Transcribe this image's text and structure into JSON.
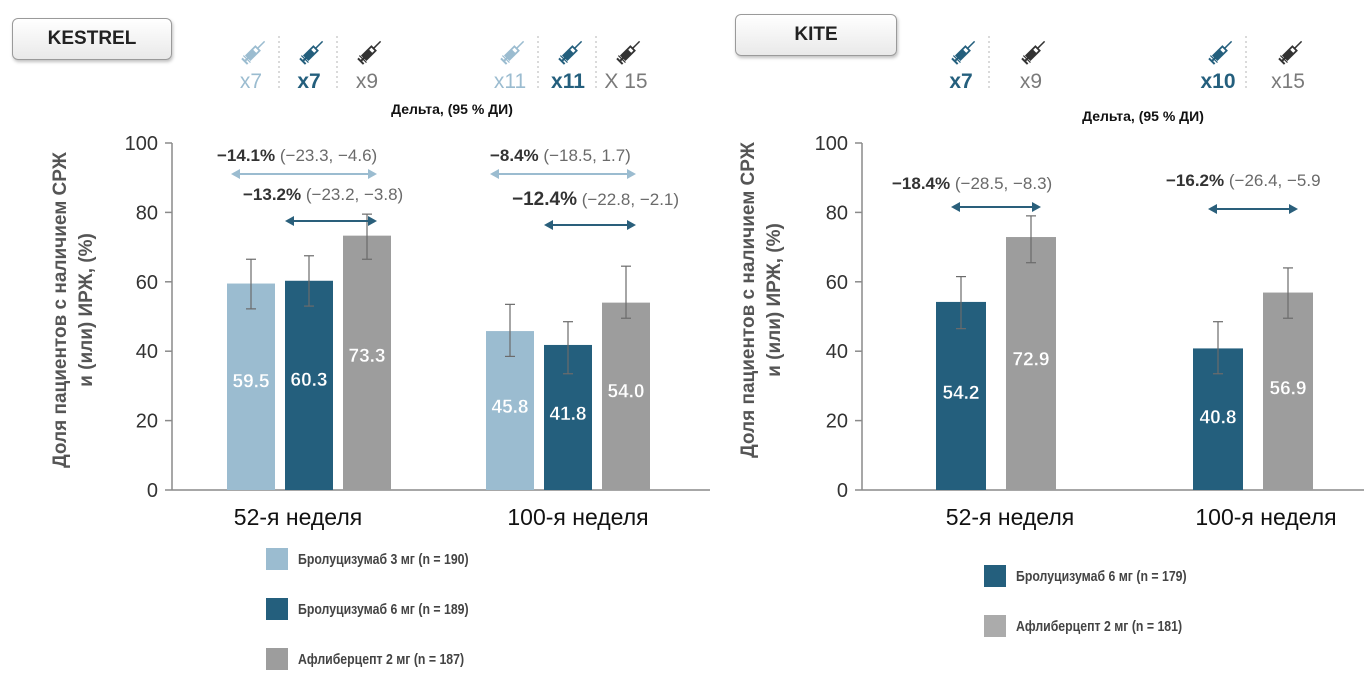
{
  "colors": {
    "brolucizumab_3mg": "#9bbcd0",
    "brolucizumab_6mg": "#245f7d",
    "aflibercept_2mg": "#9d9d9d",
    "delta_arrow": "#2a5f7b",
    "delta_arrow_light": "#9bbcd0"
  },
  "chart_data": [
    {
      "type": "bar",
      "study": "KESTREL",
      "ylabel": "Доля пациентов с наличием СРЖ и (или) ИРЖ, (%)",
      "ylim": [
        0,
        100
      ],
      "yticks": [
        0,
        20,
        40,
        60,
        80,
        100
      ],
      "categories": [
        "52-я неделя",
        "100-я неделя"
      ],
      "delta_title": "Дельта, (95 % ДИ)",
      "series": [
        {
          "name": "Бролуцизумаб 3 мг (n = 190)",
          "color": "#9bbcd0",
          "values": [
            59.5,
            45.8
          ],
          "value_labels": [
            "59.5",
            "45.8"
          ],
          "ci_low": [
            52.2,
            38.5
          ],
          "ci_high": [
            66.5,
            53.5
          ]
        },
        {
          "name": "Бролуцизумаб 6 мг (n = 189)",
          "color": "#245f7d",
          "values": [
            60.3,
            41.8
          ],
          "value_labels": [
            "60.3",
            "41.8"
          ],
          "ci_low": [
            53.0,
            33.5
          ],
          "ci_high": [
            67.5,
            48.5
          ]
        },
        {
          "name": "Афлиберцепт 2 мг (n = 187)",
          "color": "#9d9d9d",
          "values": [
            73.3,
            54.0
          ],
          "value_labels": [
            "73.3",
            "54.0"
          ],
          "ci_low": [
            66.5,
            49.5
          ],
          "ci_high": [
            79.5,
            64.5
          ]
        }
      ],
      "injections": [
        [
          "x7",
          "x7",
          "x9"
        ],
        [
          "x11",
          "x11",
          "X 15"
        ]
      ],
      "deltas": [
        {
          "category": 0,
          "from": 0,
          "to": 2,
          "value": "−14.1%",
          "ci": "(−23.3, −4.6)",
          "tone": "light"
        },
        {
          "category": 0,
          "from": 1,
          "to": 2,
          "value": "−13.2%",
          "ci": "(−23.2, −3.8)",
          "tone": "dark"
        },
        {
          "category": 1,
          "from": 0,
          "to": 2,
          "value": "−8.4%",
          "ci": "(−18.5, 1.7)",
          "tone": "light"
        },
        {
          "category": 1,
          "from": 1,
          "to": 2,
          "value": "−12.4%",
          "ci": "(−22.8, −2.1)",
          "tone": "dark"
        }
      ],
      "legend": [
        "Бролуцизумаб 3 мг (n = 190)",
        "Бролуцизумаб 6 мг (n = 189)",
        "Афлиберцепт 2 мг (n = 187)"
      ]
    },
    {
      "type": "bar",
      "study": "KITE",
      "ylabel": "Доля пациентов с наличием СРЖ и (или) ИРЖ, (%)",
      "ylim": [
        0,
        100
      ],
      "yticks": [
        0,
        20,
        40,
        60,
        80,
        100
      ],
      "categories": [
        "52-я неделя",
        "100-я неделя"
      ],
      "delta_title": "Дельта, (95 % ДИ)",
      "series": [
        {
          "name": "Бролуцизумаб 6 мг (n = 179)",
          "color": "#245f7d",
          "values": [
            54.2,
            40.8
          ],
          "value_labels": [
            "54.2",
            "40.8"
          ],
          "ci_low": [
            46.5,
            33.5
          ],
          "ci_high": [
            61.5,
            48.5
          ]
        },
        {
          "name": "Афлиберцепт 2 мг (n = 181)",
          "color": "#9d9d9d",
          "values": [
            72.9,
            56.9
          ],
          "value_labels": [
            "72.9",
            "56.9"
          ],
          "ci_low": [
            65.5,
            49.5
          ],
          "ci_high": [
            79.0,
            64.0
          ]
        }
      ],
      "injections": [
        [
          "x7",
          "x9"
        ],
        [
          "x10",
          "x15"
        ]
      ],
      "deltas": [
        {
          "category": 0,
          "from": 0,
          "to": 1,
          "value": "−18.4%",
          "ci": "(−28.5, −8.3)",
          "tone": "dark"
        },
        {
          "category": 1,
          "from": 0,
          "to": 1,
          "value": "−16.2%",
          "ci": "(−26.4, −5.9",
          "tone": "dark"
        }
      ],
      "legend": [
        "Бролуцизумаб 6 мг (n = 179)",
        "Афлиберцепт 2 мг (n = 181)"
      ]
    }
  ]
}
